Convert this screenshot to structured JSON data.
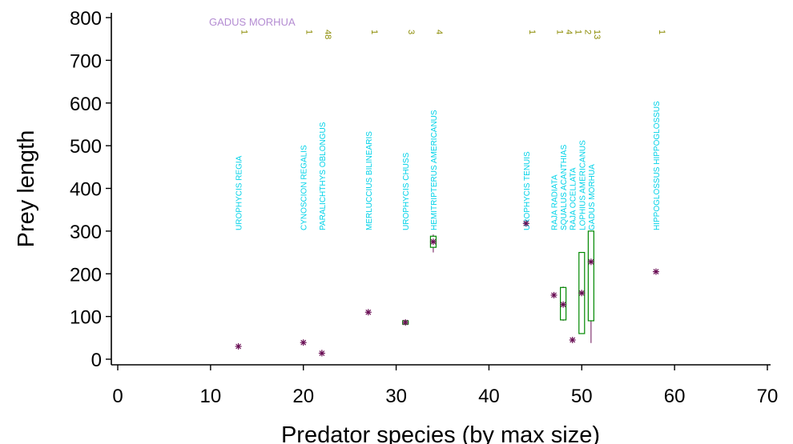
{
  "chart_data": {
    "type": "boxplot",
    "xlabel": "Predator species (by max size)",
    "ylabel": "Prey length",
    "prey_species": "GADUS MORHUA",
    "xlim": [
      0,
      70
    ],
    "ylim": [
      0,
      800
    ],
    "xticks": [
      "0",
      "10",
      "20",
      "30",
      "40",
      "50",
      "60",
      "70"
    ],
    "yticks": [
      "0",
      "100",
      "200",
      "300",
      "400",
      "500",
      "600",
      "700",
      "800"
    ],
    "colors": {
      "species": "#00d2e8",
      "count": "#8a8a00",
      "prey": "#b48cd2",
      "box": "#008800",
      "mean": "#6a0f55",
      "whisker": "#6a0f55"
    },
    "predators": [
      {
        "x": 13,
        "species": "UROPHYCIS REGIA",
        "n": "1",
        "mean": 30
      },
      {
        "x": 20,
        "species": "CYNOSCION REGALIS",
        "n": "1",
        "mean": 39
      },
      {
        "x": 22,
        "species": "PARALICHTHYS OBLONGUS",
        "n": "48",
        "mean": 14,
        "whisker": [
          8,
          22
        ]
      },
      {
        "x": 27,
        "species": "MERLUCCIUS BILINEARIS",
        "n": "1",
        "mean": 110
      },
      {
        "x": 31,
        "species": "UROPHYCIS CHUSS",
        "n": "3",
        "mean": 86,
        "box": [
          82,
          90
        ],
        "median": 86
      },
      {
        "x": 34,
        "species": "HEMITRIPTERUS AMERICANUS",
        "n": "4",
        "mean": 275,
        "box": [
          262,
          288
        ],
        "median": 275,
        "whisker": [
          250,
          292
        ]
      },
      {
        "x": 44,
        "species": "UROPHYCIS TENUIS",
        "n": "1",
        "mean": 318
      },
      {
        "x": 47,
        "species": "RAJA RADIATA",
        "n": "1",
        "mean": 150
      },
      {
        "x": 48,
        "species": "SQUALUS ACANTHIAS",
        "n": "4",
        "mean": 128,
        "box": [
          92,
          168
        ],
        "median": 128,
        "whisker": [
          90,
          170
        ]
      },
      {
        "x": 49,
        "species": "RAJA OCELLATA",
        "n": "1",
        "mean": 45
      },
      {
        "x": 50,
        "species": "LOPHIUS AMERICANUS",
        "n": "2",
        "mean": 155,
        "box": [
          60,
          250
        ],
        "median": 155
      },
      {
        "x": 51,
        "species": "GADUS MORHUA",
        "n": "13",
        "mean": 228,
        "box": [
          90,
          300
        ],
        "median": 228,
        "whisker": [
          38,
          300
        ]
      },
      {
        "x": 58,
        "species": "HIPPOGLOSSUS HIPPOGLOSSUS",
        "n": "1",
        "mean": 205
      }
    ]
  }
}
